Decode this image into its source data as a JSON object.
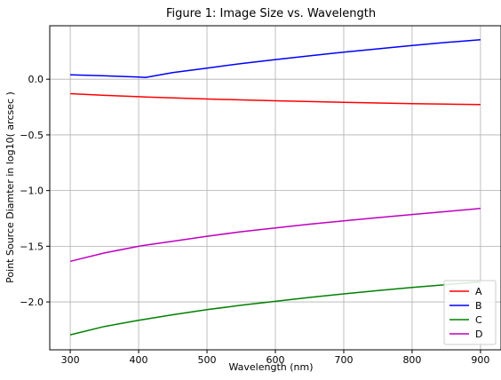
{
  "chart_data": {
    "type": "line",
    "title": "Figure 1: Image Size vs. Wavelength",
    "xlabel": "Wavelength (nm)",
    "ylabel": "Point Source Diamter in log10( arcsec )",
    "xlim": [
      270,
      930
    ],
    "ylim": [
      -2.43,
      0.48
    ],
    "xticks": [
      300,
      400,
      500,
      600,
      700,
      800,
      900
    ],
    "xtick_labels": [
      "300",
      "400",
      "500",
      "600",
      "700",
      "800",
      "900"
    ],
    "yticks": [
      0.0,
      -0.5,
      -1.0,
      -1.5,
      -2.0
    ],
    "ytick_labels": [
      "0.0",
      "−0.5",
      "−1.0",
      "−1.5",
      "−2.0"
    ],
    "grid": true,
    "legend_position": "lower-right",
    "x": [
      300,
      350,
      400,
      410,
      450,
      500,
      550,
      600,
      650,
      700,
      750,
      800,
      850,
      900
    ],
    "series": [
      {
        "name": "A",
        "color": "#ff0000",
        "values": [
          -0.13,
          -0.145,
          -0.157,
          -0.16,
          -0.168,
          -0.178,
          -0.186,
          -0.194,
          -0.201,
          -0.208,
          -0.214,
          -0.219,
          -0.224,
          -0.228
        ]
      },
      {
        "name": "B",
        "color": "#0000ff",
        "values": [
          0.04,
          0.03,
          0.02,
          0.015,
          0.06,
          0.1,
          0.14,
          0.176,
          0.21,
          0.243,
          0.273,
          0.302,
          0.33,
          0.355
        ]
      },
      {
        "name": "C",
        "color": "#008000",
        "values": [
          -2.295,
          -2.22,
          -2.165,
          -2.155,
          -2.115,
          -2.07,
          -2.03,
          -1.995,
          -1.96,
          -1.928,
          -1.898,
          -1.87,
          -1.845,
          -1.82
        ]
      },
      {
        "name": "D",
        "color": "#bf00bf",
        "values": [
          -1.635,
          -1.56,
          -1.5,
          -1.49,
          -1.455,
          -1.41,
          -1.37,
          -1.335,
          -1.302,
          -1.272,
          -1.243,
          -1.215,
          -1.188,
          -1.16
        ]
      }
    ]
  }
}
